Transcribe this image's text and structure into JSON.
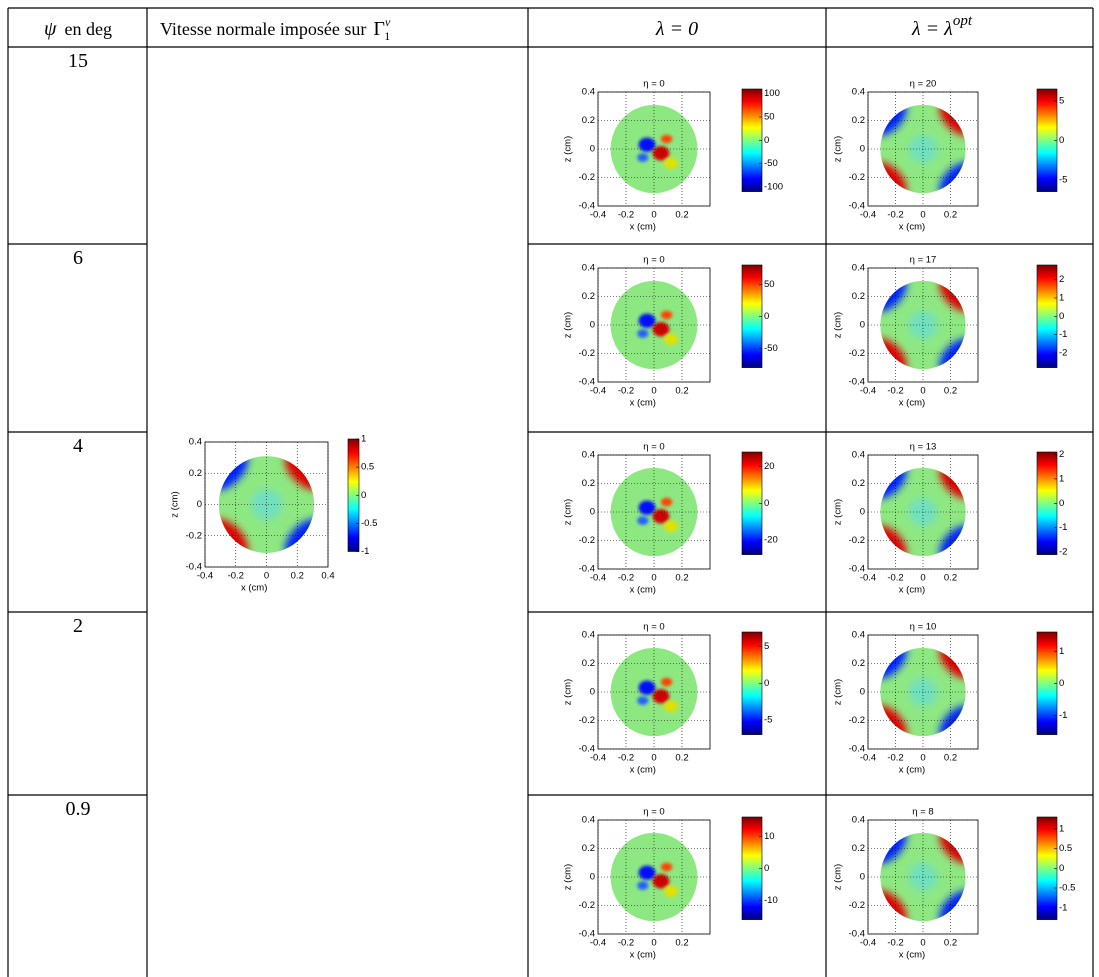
{
  "header": {
    "col0": {
      "symbol": "ψ",
      "text": "en deg"
    },
    "col1": {
      "text": "Vitesse normale imposée sur",
      "symbol": "Γ",
      "sup": "v",
      "sub": "1"
    },
    "col2": "λ = 0",
    "col3": {
      "text": "λ = λ",
      "sup": "opt"
    }
  },
  "plot_axes": {
    "xlim": [
      -0.4,
      0.4
    ],
    "ylim": [
      -0.4,
      0.4
    ],
    "yticks": [
      0.4,
      0.2,
      0,
      -0.2,
      -0.4
    ],
    "xlabel": "x (cm)",
    "ylabel": "z (cm)"
  },
  "imposed_velocity_plot": {
    "xticks": [
      -0.4,
      -0.2,
      0,
      0.2,
      0.4
    ],
    "colorbar_ticks": [
      1,
      0.5,
      0,
      -0.5,
      -1
    ],
    "clim": [
      -1,
      1
    ]
  },
  "rows": [
    {
      "psi": 15,
      "lambda_0": {
        "title": "η = 0",
        "xticks": [
          -0.4,
          -0.2,
          0,
          0.2
        ],
        "colorbar_ticks": [
          100,
          50,
          0,
          -50,
          -100
        ],
        "clim": [
          -110,
          110
        ]
      },
      "lambda_opt": {
        "title": "η = 20",
        "xticks": [
          -0.4,
          -0.2,
          0,
          0.2
        ],
        "colorbar_ticks": [
          5,
          0,
          -5
        ],
        "clim": [
          -6.5,
          6.5
        ]
      }
    },
    {
      "psi": 6,
      "lambda_0": {
        "title": "η = 0",
        "xticks": [
          -0.4,
          -0.2,
          0,
          0.2
        ],
        "colorbar_ticks": [
          50,
          0,
          -50
        ],
        "clim": [
          -80,
          80
        ]
      },
      "lambda_opt": {
        "title": "η = 17",
        "xticks": [
          -0.4,
          -0.2,
          0,
          0.2
        ],
        "colorbar_ticks": [
          2,
          1,
          0,
          -1,
          -2
        ],
        "clim": [
          -2.8,
          2.8
        ]
      }
    },
    {
      "psi": 4,
      "lambda_0": {
        "title": "η = 0",
        "xticks": [
          -0.4,
          -0.2,
          0,
          0.2
        ],
        "colorbar_ticks": [
          20,
          0,
          -20
        ],
        "clim": [
          -28,
          28
        ]
      },
      "lambda_opt": {
        "title": "η = 13",
        "xticks": [
          -0.4,
          -0.2,
          0,
          0.2
        ],
        "colorbar_ticks": [
          2,
          1,
          0,
          -1,
          -2
        ],
        "clim": [
          -2.1,
          2.1
        ]
      }
    },
    {
      "psi": 2,
      "lambda_0": {
        "title": "η = 0",
        "xticks": [
          -0.4,
          -0.2,
          0,
          0.2
        ],
        "colorbar_ticks": [
          5,
          0,
          -5
        ],
        "clim": [
          -7,
          7
        ]
      },
      "lambda_opt": {
        "title": "η = 10",
        "xticks": [
          -0.4,
          -0.2,
          0,
          0.2
        ],
        "colorbar_ticks": [
          1,
          0,
          -1
        ],
        "clim": [
          -1.6,
          1.6
        ]
      }
    },
    {
      "psi": 0.9,
      "lambda_0": {
        "title": "η = 0",
        "xticks": [
          -0.4,
          -0.2,
          0,
          0.2
        ],
        "colorbar_ticks": [
          10,
          0,
          -10
        ],
        "clim": [
          -16,
          16
        ]
      },
      "lambda_opt": {
        "title": "η = 8",
        "xticks": [
          -0.4,
          -0.2,
          0,
          0.2
        ],
        "colorbar_ticks": [
          1,
          0.5,
          0,
          -0.5,
          -1
        ],
        "clim": [
          -1.3,
          1.3
        ]
      }
    }
  ]
}
